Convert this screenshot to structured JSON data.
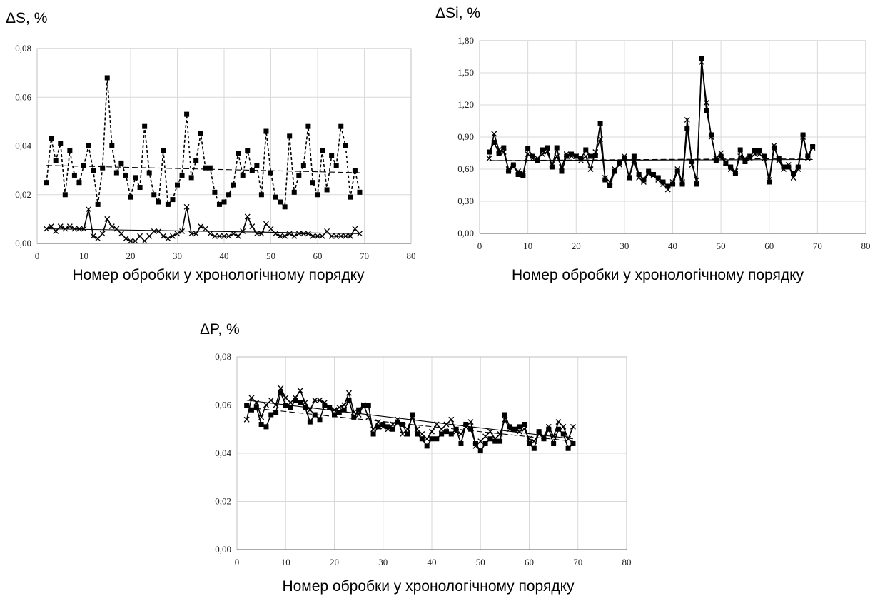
{
  "chart_data": [
    {
      "type": "line",
      "ylabel": "ΔS, %",
      "xlabel": "Номер обробки у хронологічному порядку",
      "xlim": [
        0,
        80
      ],
      "ylim": [
        0,
        0.08
      ],
      "xticks": [
        0,
        10,
        20,
        30,
        40,
        50,
        60,
        70,
        80
      ],
      "yticks": [
        0,
        0.02,
        0.04,
        0.06,
        0.08
      ],
      "xtick_labels": [
        "0",
        "10",
        "20",
        "30",
        "40",
        "50",
        "60",
        "70",
        "80"
      ],
      "ytick_labels": [
        "0,00",
        "0,02",
        "0,04",
        "0,06",
        "0,08"
      ],
      "grid": true,
      "series": [
        {
          "marker": "square",
          "line_style": "dashed",
          "x": [
            2,
            3,
            4,
            5,
            6,
            7,
            8,
            9,
            10,
            11,
            12,
            13,
            14,
            15,
            16,
            17,
            18,
            19,
            20,
            21,
            22,
            23,
            24,
            25,
            26,
            27,
            28,
            29,
            30,
            31,
            32,
            33,
            34,
            35,
            36,
            37,
            38,
            39,
            40,
            41,
            42,
            43,
            44,
            45,
            46,
            47,
            48,
            49,
            50,
            51,
            52,
            53,
            54,
            55,
            56,
            57,
            58,
            59,
            60,
            61,
            62,
            63,
            64,
            65,
            66,
            67,
            68,
            69
          ],
          "values": [
            0.025,
            0.043,
            0.034,
            0.041,
            0.02,
            0.038,
            0.028,
            0.025,
            0.032,
            0.04,
            0.03,
            0.016,
            0.031,
            0.068,
            0.04,
            0.029,
            0.033,
            0.028,
            0.019,
            0.027,
            0.023,
            0.048,
            0.029,
            0.02,
            0.017,
            0.038,
            0.016,
            0.018,
            0.024,
            0.028,
            0.053,
            0.027,
            0.034,
            0.045,
            0.031,
            0.031,
            0.021,
            0.016,
            0.017,
            0.02,
            0.024,
            0.037,
            0.028,
            0.038,
            0.03,
            0.032,
            0.02,
            0.046,
            0.029,
            0.019,
            0.017,
            0.015,
            0.044,
            0.021,
            0.028,
            0.032,
            0.048,
            0.025,
            0.02,
            0.038,
            0.022,
            0.036,
            0.032,
            0.048,
            0.04,
            0.019,
            0.03,
            0.021
          ],
          "trend": [
            0.032,
            0.029
          ]
        },
        {
          "marker": "x",
          "line_style": "solid",
          "x": [
            2,
            3,
            4,
            5,
            6,
            7,
            8,
            9,
            10,
            11,
            12,
            13,
            14,
            15,
            16,
            17,
            18,
            19,
            20,
            21,
            22,
            23,
            24,
            25,
            26,
            27,
            28,
            29,
            30,
            31,
            32,
            33,
            34,
            35,
            36,
            37,
            38,
            39,
            40,
            41,
            42,
            43,
            44,
            45,
            46,
            47,
            48,
            49,
            50,
            51,
            52,
            53,
            54,
            55,
            56,
            57,
            58,
            59,
            60,
            61,
            62,
            63,
            64,
            65,
            66,
            67,
            68,
            69
          ],
          "values": [
            0.006,
            0.007,
            0.005,
            0.007,
            0.006,
            0.007,
            0.006,
            0.006,
            0.006,
            0.014,
            0.003,
            0.002,
            0.004,
            0.01,
            0.007,
            0.006,
            0.004,
            0.002,
            0.001,
            0.001,
            0.003,
            0.001,
            0.003,
            0.005,
            0.005,
            0.003,
            0.002,
            0.003,
            0.004,
            0.005,
            0.015,
            0.004,
            0.004,
            0.007,
            0.006,
            0.004,
            0.003,
            0.003,
            0.003,
            0.003,
            0.004,
            0.003,
            0.005,
            0.011,
            0.007,
            0.004,
            0.004,
            0.008,
            0.006,
            0.004,
            0.003,
            0.003,
            0.004,
            0.003,
            0.004,
            0.004,
            0.004,
            0.003,
            0.003,
            0.003,
            0.005,
            0.003,
            0.003,
            0.003,
            0.003,
            0.003,
            0.006,
            0.004
          ],
          "trend": [
            0.006,
            0.004
          ]
        }
      ]
    },
    {
      "type": "line",
      "ylabel": "ΔSi, %",
      "xlabel": "Номер обробки у хронологічному порядку",
      "xlim": [
        0,
        80
      ],
      "ylim": [
        0,
        1.8
      ],
      "xticks": [
        0,
        10,
        20,
        30,
        40,
        50,
        60,
        70,
        80
      ],
      "yticks": [
        0,
        0.3,
        0.6,
        0.9,
        1.2,
        1.5,
        1.8
      ],
      "xtick_labels": [
        "0",
        "10",
        "20",
        "30",
        "40",
        "50",
        "60",
        "70",
        "80"
      ],
      "ytick_labels": [
        "0,00",
        "0,30",
        "0,60",
        "0,90",
        "1,20",
        "1,50",
        "1,80"
      ],
      "grid": true,
      "series": [
        {
          "marker": "square",
          "line_style": "solid",
          "x": [
            2,
            3,
            4,
            5,
            6,
            7,
            8,
            9,
            10,
            11,
            12,
            13,
            14,
            15,
            16,
            17,
            18,
            19,
            20,
            21,
            22,
            23,
            24,
            25,
            26,
            27,
            28,
            29,
            30,
            31,
            32,
            33,
            34,
            35,
            36,
            37,
            38,
            39,
            40,
            41,
            42,
            43,
            44,
            45,
            46,
            47,
            48,
            49,
            50,
            51,
            52,
            53,
            54,
            55,
            56,
            57,
            58,
            59,
            60,
            61,
            62,
            63,
            64,
            65,
            66,
            67,
            68,
            69
          ],
          "values": [
            0.76,
            0.85,
            0.75,
            0.8,
            0.58,
            0.64,
            0.55,
            0.54,
            0.79,
            0.72,
            0.68,
            0.78,
            0.8,
            0.62,
            0.8,
            0.58,
            0.72,
            0.74,
            0.72,
            0.7,
            0.78,
            0.72,
            0.73,
            1.03,
            0.5,
            0.45,
            0.58,
            0.66,
            0.7,
            0.52,
            0.72,
            0.55,
            0.5,
            0.58,
            0.55,
            0.52,
            0.48,
            0.44,
            0.46,
            0.58,
            0.46,
            0.98,
            0.67,
            0.46,
            1.63,
            1.15,
            0.92,
            0.68,
            0.72,
            0.65,
            0.62,
            0.56,
            0.78,
            0.67,
            0.72,
            0.77,
            0.77,
            0.72,
            0.48,
            0.8,
            0.7,
            0.62,
            0.62,
            0.56,
            0.62,
            0.92,
            0.72,
            0.81
          ],
          "trend": [
            0.68,
            0.7
          ]
        },
        {
          "marker": "x",
          "line_style": "solid",
          "x": [
            2,
            3,
            4,
            5,
            6,
            7,
            8,
            9,
            10,
            11,
            12,
            13,
            14,
            15,
            16,
            17,
            18,
            19,
            20,
            21,
            22,
            23,
            24,
            25,
            26,
            27,
            28,
            29,
            30,
            31,
            32,
            33,
            34,
            35,
            36,
            37,
            38,
            39,
            40,
            41,
            42,
            43,
            44,
            45,
            46,
            47,
            48,
            49,
            50,
            51,
            52,
            53,
            54,
            55,
            56,
            57,
            58,
            59,
            60,
            61,
            62,
            63,
            64,
            65,
            66,
            67,
            68,
            69
          ],
          "values": [
            0.7,
            0.93,
            0.78,
            0.76,
            0.6,
            0.62,
            0.58,
            0.56,
            0.74,
            0.7,
            0.7,
            0.74,
            0.76,
            0.64,
            0.72,
            0.62,
            0.74,
            0.72,
            0.72,
            0.68,
            0.72,
            0.6,
            0.76,
            0.88,
            0.52,
            0.48,
            0.6,
            0.64,
            0.72,
            0.52,
            0.68,
            0.52,
            0.48,
            0.56,
            0.54,
            0.5,
            0.46,
            0.41,
            0.48,
            0.6,
            0.48,
            1.06,
            0.64,
            0.5,
            1.6,
            1.22,
            0.9,
            0.7,
            0.75,
            0.66,
            0.6,
            0.58,
            0.72,
            0.7,
            0.7,
            0.74,
            0.74,
            0.7,
            0.5,
            0.82,
            0.68,
            0.6,
            0.64,
            0.52,
            0.6,
            0.9,
            0.7,
            0.8
          ],
          "trend": [
            0.68,
            0.69
          ]
        }
      ]
    },
    {
      "type": "line",
      "ylabel": "ΔP, %",
      "xlabel": "Номер обробки у хронологічному порядку",
      "xlim": [
        0,
        80
      ],
      "ylim": [
        0,
        0.08
      ],
      "xticks": [
        0,
        10,
        20,
        30,
        40,
        50,
        60,
        70,
        80
      ],
      "yticks": [
        0,
        0.02,
        0.04,
        0.06,
        0.08
      ],
      "xtick_labels": [
        "0",
        "10",
        "20",
        "30",
        "40",
        "50",
        "60",
        "70",
        "80"
      ],
      "ytick_labels": [
        "0,00",
        "0,02",
        "0,04",
        "0,06",
        "0,08"
      ],
      "grid": true,
      "series": [
        {
          "marker": "square",
          "line_style": "solid",
          "x": [
            2,
            3,
            4,
            5,
            6,
            7,
            8,
            9,
            10,
            11,
            12,
            13,
            14,
            15,
            16,
            17,
            18,
            19,
            20,
            21,
            22,
            23,
            24,
            25,
            26,
            27,
            28,
            29,
            30,
            31,
            32,
            33,
            34,
            35,
            36,
            37,
            38,
            39,
            40,
            41,
            42,
            43,
            44,
            45,
            46,
            47,
            48,
            49,
            50,
            51,
            52,
            53,
            54,
            55,
            56,
            57,
            58,
            59,
            60,
            61,
            62,
            63,
            64,
            65,
            66,
            67,
            68,
            69
          ],
          "values": [
            0.06,
            0.058,
            0.059,
            0.052,
            0.051,
            0.056,
            0.057,
            0.065,
            0.06,
            0.059,
            0.062,
            0.061,
            0.059,
            0.053,
            0.056,
            0.054,
            0.06,
            0.059,
            0.056,
            0.057,
            0.058,
            0.062,
            0.055,
            0.058,
            0.06,
            0.06,
            0.048,
            0.051,
            0.052,
            0.051,
            0.05,
            0.053,
            0.052,
            0.048,
            0.056,
            0.048,
            0.046,
            0.043,
            0.046,
            0.046,
            0.048,
            0.049,
            0.048,
            0.05,
            0.044,
            0.052,
            0.05,
            0.044,
            0.041,
            0.044,
            0.046,
            0.045,
            0.045,
            0.056,
            0.051,
            0.05,
            0.051,
            0.052,
            0.044,
            0.042,
            0.049,
            0.046,
            0.05,
            0.044,
            0.05,
            0.048,
            0.042,
            0.044
          ],
          "trend": [
            0.059,
            0.045
          ]
        },
        {
          "marker": "x",
          "line_style": "solid",
          "x": [
            2,
            3,
            4,
            5,
            6,
            7,
            8,
            9,
            10,
            11,
            12,
            13,
            14,
            15,
            16,
            17,
            18,
            19,
            20,
            21,
            22,
            23,
            24,
            25,
            26,
            27,
            28,
            29,
            30,
            31,
            32,
            33,
            34,
            35,
            36,
            37,
            38,
            39,
            40,
            41,
            42,
            43,
            44,
            45,
            46,
            47,
            48,
            49,
            50,
            51,
            52,
            53,
            54,
            55,
            56,
            57,
            58,
            59,
            60,
            61,
            62,
            63,
            64,
            65,
            66,
            67,
            68,
            69
          ],
          "values": [
            0.054,
            0.063,
            0.061,
            0.055,
            0.06,
            0.062,
            0.06,
            0.067,
            0.063,
            0.061,
            0.063,
            0.066,
            0.061,
            0.058,
            0.062,
            0.062,
            0.061,
            0.059,
            0.058,
            0.059,
            0.06,
            0.065,
            0.057,
            0.056,
            0.06,
            0.055,
            0.05,
            0.053,
            0.051,
            0.05,
            0.052,
            0.054,
            0.048,
            0.05,
            0.055,
            0.05,
            0.048,
            0.046,
            0.049,
            0.052,
            0.05,
            0.052,
            0.054,
            0.049,
            0.048,
            0.051,
            0.053,
            0.043,
            0.045,
            0.047,
            0.049,
            0.046,
            0.048,
            0.054,
            0.05,
            0.05,
            0.049,
            0.05,
            0.046,
            0.045,
            0.048,
            0.047,
            0.051,
            0.047,
            0.053,
            0.051,
            0.046,
            0.051
          ],
          "trend": [
            0.062,
            0.046
          ]
        }
      ]
    }
  ]
}
